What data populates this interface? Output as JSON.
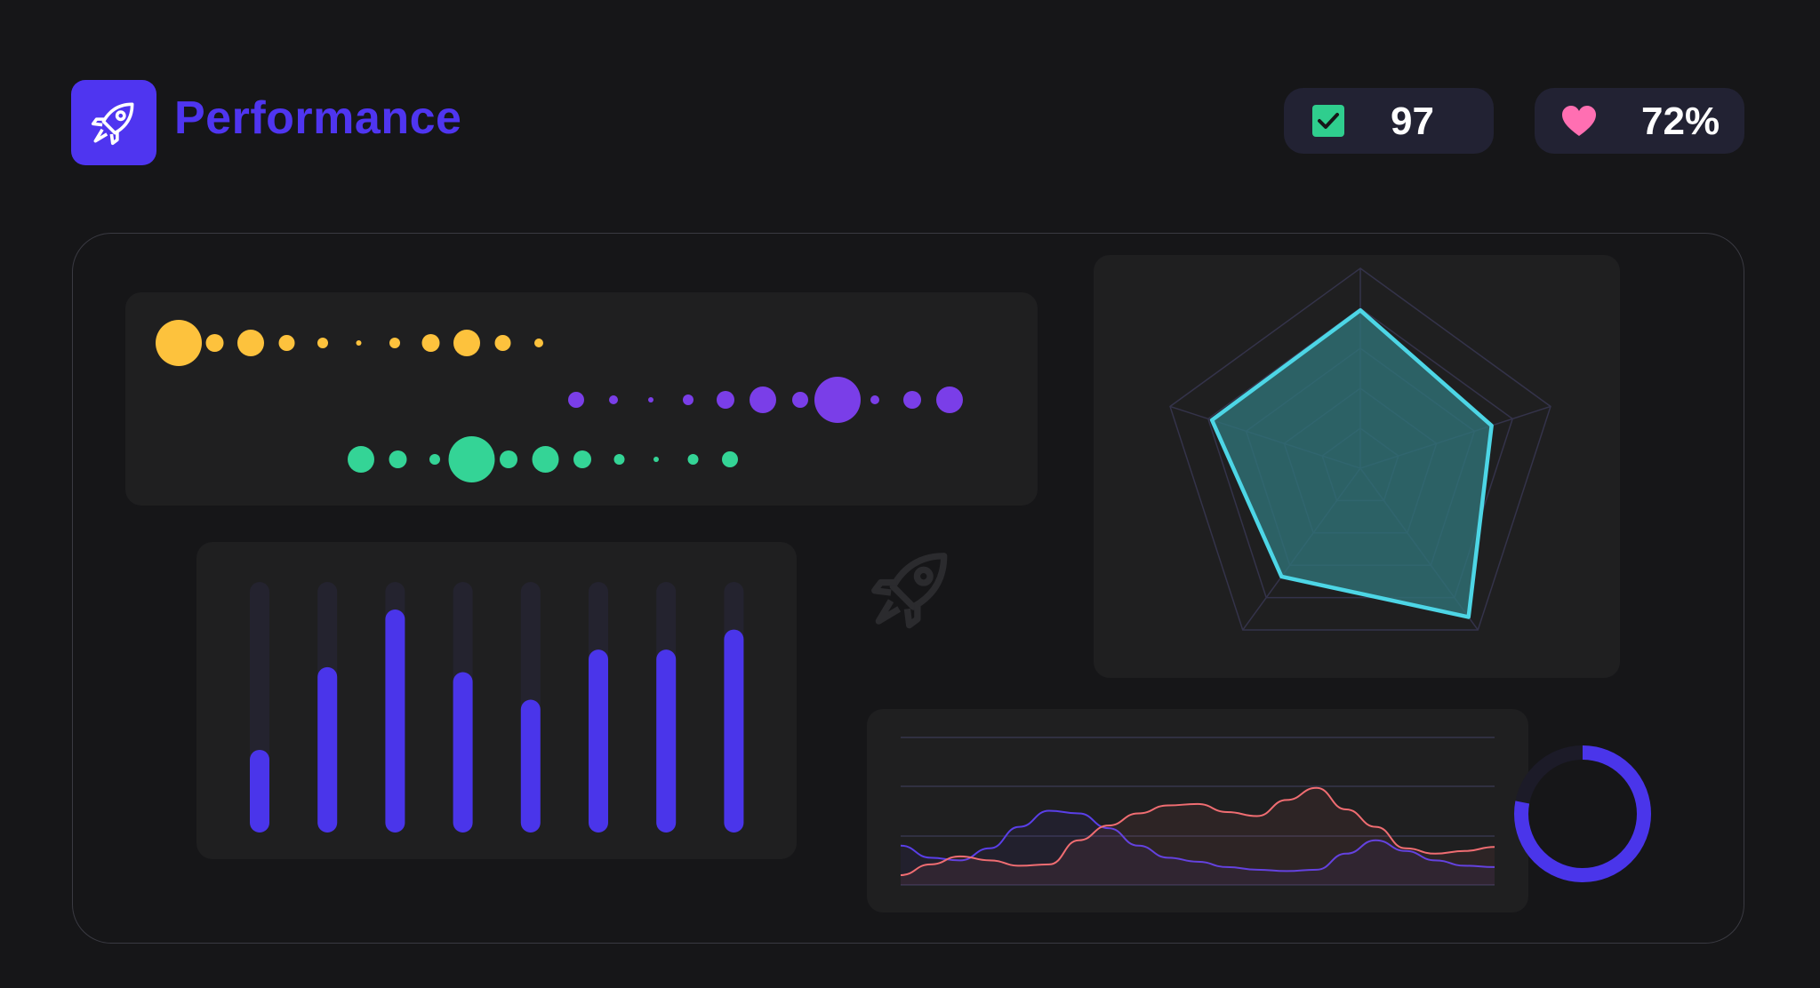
{
  "header": {
    "title": "Performance",
    "logo_icon": "rocket-icon",
    "brand_color": "#4f35f0"
  },
  "stats": {
    "tasks": {
      "icon": "checkbox-check-icon",
      "value": "97",
      "icon_color": "#2fce8e"
    },
    "health": {
      "icon": "heart-icon",
      "value": "72%",
      "icon_color": "#ff6fb2"
    }
  },
  "chart_data": [
    {
      "type": "scatter",
      "series": [
        {
          "color": "#fdc23d",
          "sizes": [
            26,
            10,
            15,
            9,
            6,
            3,
            6,
            10,
            15,
            9,
            5
          ]
        },
        {
          "color": "#7a3ee8",
          "sizes": [
            9,
            5,
            3,
            6,
            10,
            15,
            9,
            26,
            5,
            10,
            15
          ]
        },
        {
          "color": "#34d496",
          "sizes": [
            15,
            10,
            6,
            26,
            10,
            15,
            10,
            6,
            3,
            6,
            9
          ]
        }
      ]
    },
    {
      "type": "bar",
      "values": [
        0.33,
        0.66,
        0.89,
        0.64,
        0.53,
        0.73,
        0.73,
        0.81
      ],
      "ylim": [
        0,
        1
      ],
      "bar_color": "#4a35ea",
      "track_color": "#24232f"
    },
    {
      "type": "radar",
      "axes": 5,
      "values": [
        0.79,
        0.69,
        0.92,
        0.67,
        0.78
      ],
      "rmax": 1,
      "stroke_color": "#4dd6e6",
      "fill_color": "#2f7277"
    },
    {
      "type": "line",
      "x": [
        0,
        1,
        2,
        3,
        4,
        5,
        6,
        7,
        8,
        9,
        10,
        11,
        12,
        13,
        14,
        15,
        16,
        17,
        18,
        19,
        20
      ],
      "series": [
        {
          "color": "#5a3fe8",
          "values": [
            0.26,
            0.17,
            0.15,
            0.24,
            0.4,
            0.52,
            0.5,
            0.39,
            0.26,
            0.17,
            0.14,
            0.1,
            0.08,
            0.07,
            0.08,
            0.2,
            0.3,
            0.22,
            0.15,
            0.11,
            0.1
          ]
        },
        {
          "color": "#f06d72",
          "values": [
            0.04,
            0.12,
            0.18,
            0.15,
            0.11,
            0.12,
            0.3,
            0.41,
            0.5,
            0.56,
            0.57,
            0.51,
            0.48,
            0.6,
            0.69,
            0.53,
            0.4,
            0.24,
            0.2,
            0.22,
            0.25
          ]
        }
      ],
      "grid": true
    },
    {
      "type": "donut",
      "value": 0.78,
      "color": "#4a35ea",
      "track_color": "#1c1b28"
    }
  ]
}
